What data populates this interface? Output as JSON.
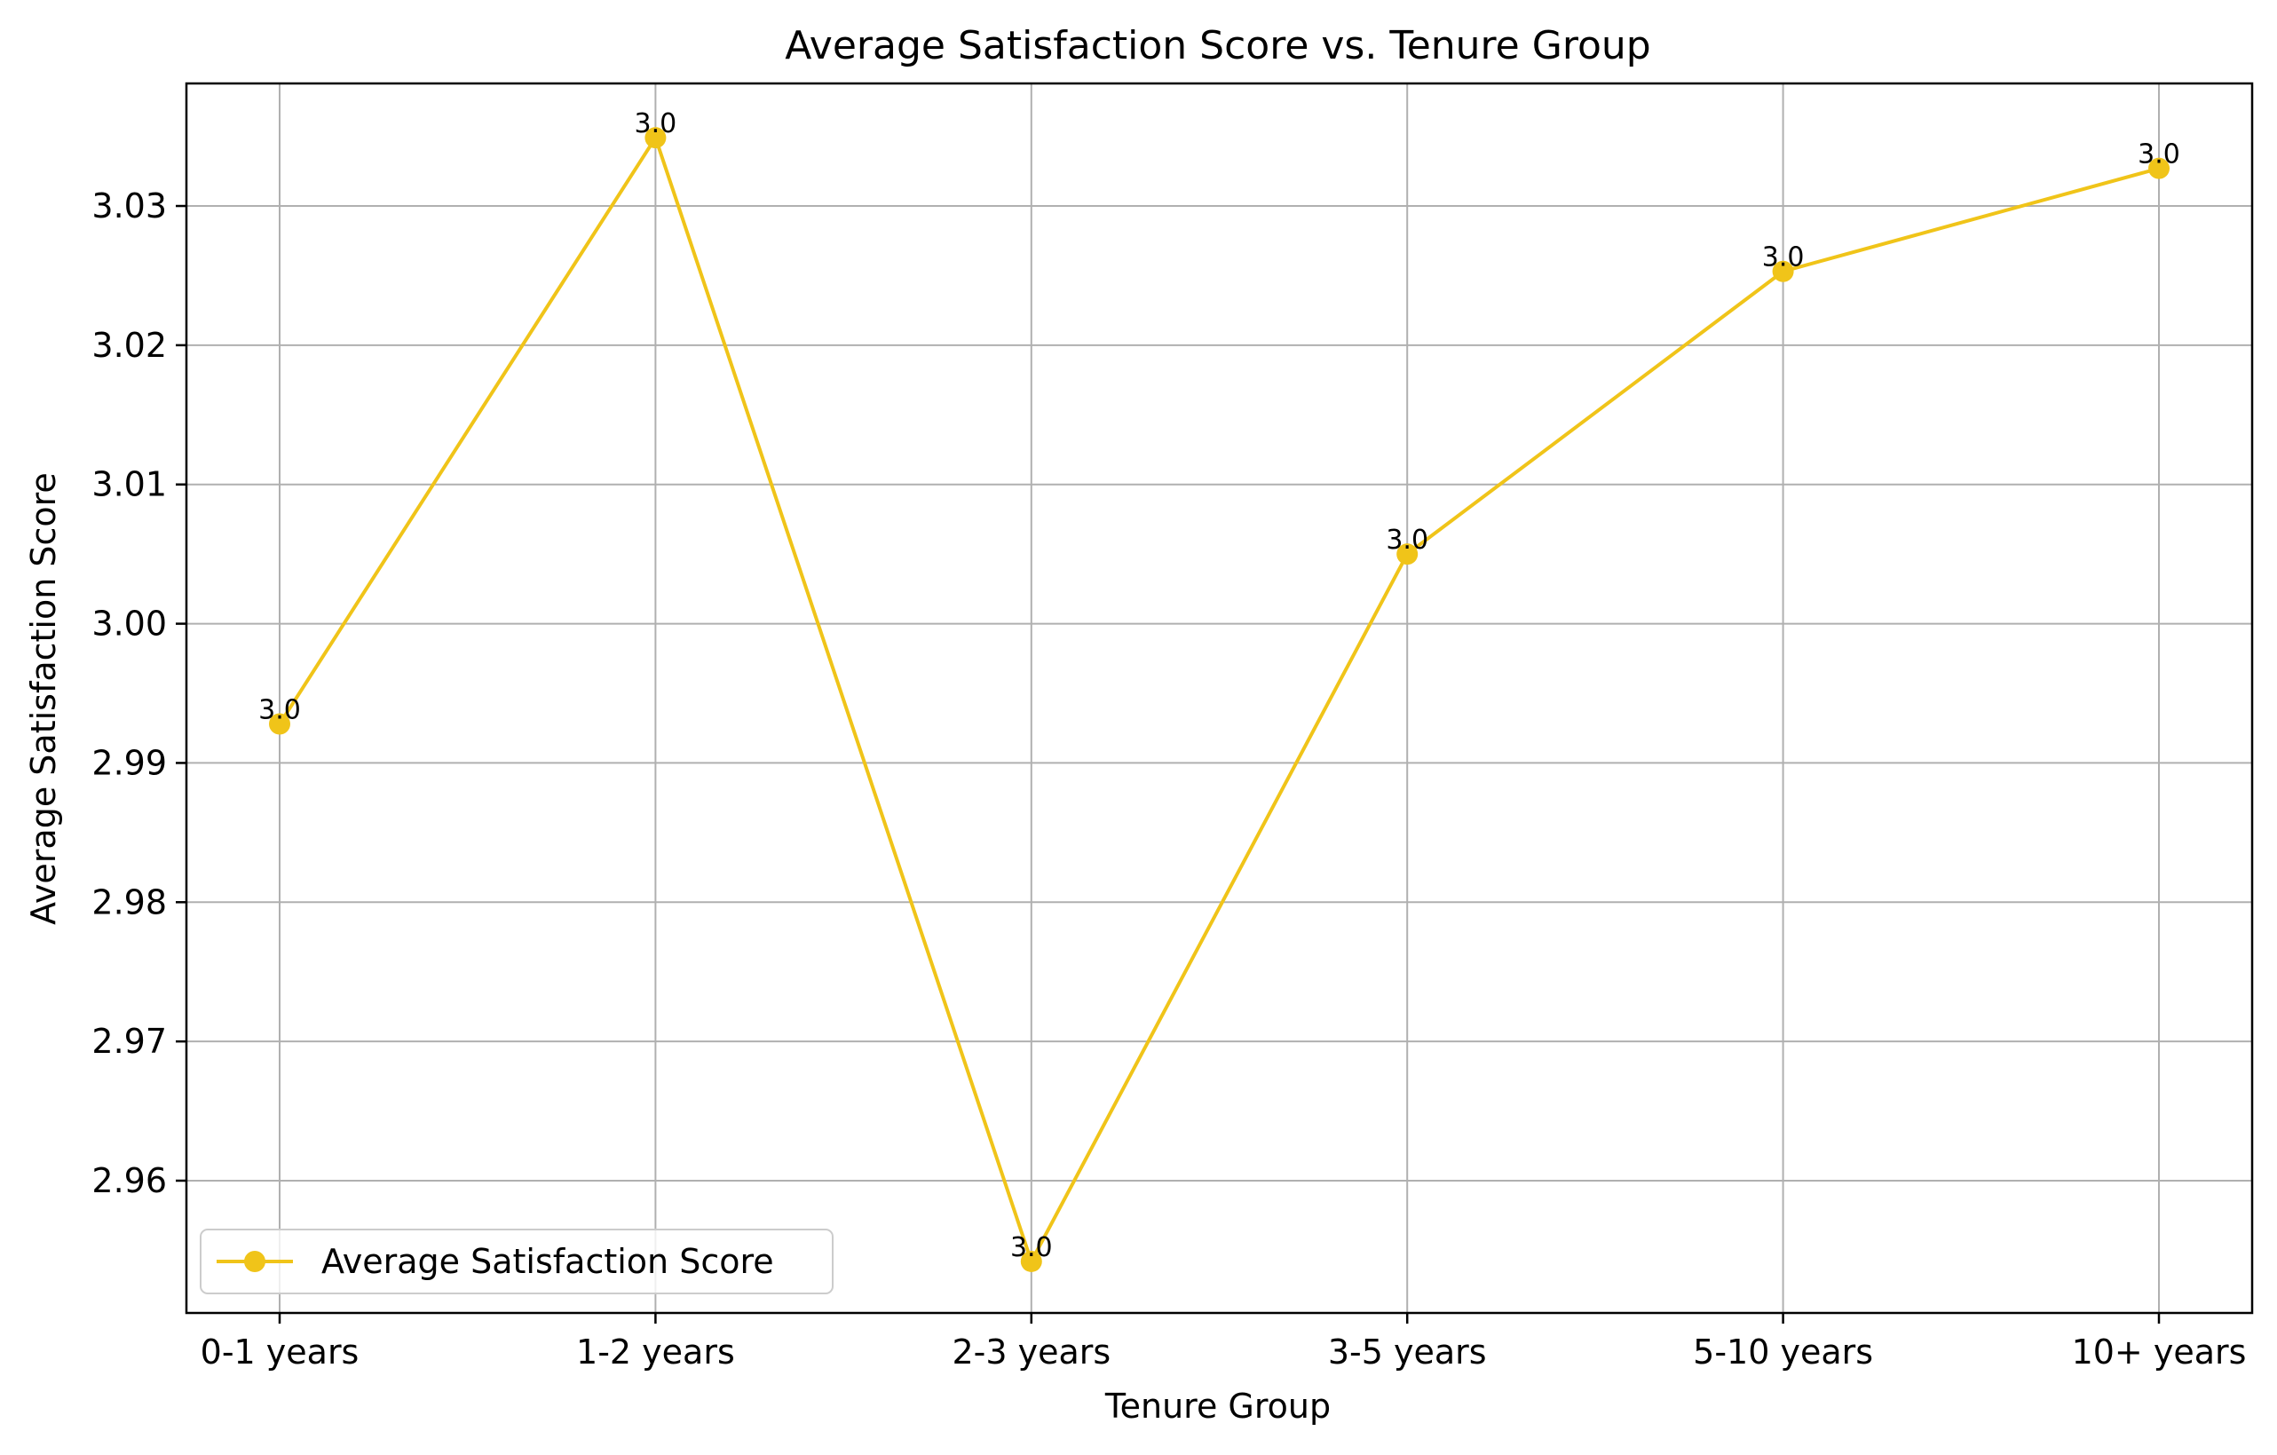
{
  "chart_data": {
    "type": "line",
    "title": "Average Satisfaction Score vs. Tenure Group",
    "xlabel": "Tenure Group",
    "ylabel": "Average Satisfaction Score",
    "categories": [
      "0-1 years",
      "1-2 years",
      "2-3 years",
      "3-5 years",
      "5-10 years",
      "10+ years"
    ],
    "series": [
      {
        "name": "Average Satisfaction Score",
        "values": [
          2.9928,
          3.0349,
          2.9542,
          3.005,
          3.0253,
          3.0327
        ],
        "labels": [
          "3.0",
          "3.0",
          "3.0",
          "3.0",
          "3.0",
          "3.0"
        ],
        "color": "#f0c419"
      }
    ],
    "yticks": [
      2.96,
      2.97,
      2.98,
      2.99,
      3.0,
      3.01,
      3.02,
      3.03
    ],
    "ytick_labels": [
      "2.96",
      "2.97",
      "2.98",
      "2.99",
      "3.00",
      "3.01",
      "3.02",
      "3.03"
    ],
    "ylim": [
      2.9505,
      3.0388
    ],
    "grid": true,
    "legend_position": "lower-left",
    "grid_color": "#b0b0b0",
    "axis_color": "#000000"
  }
}
